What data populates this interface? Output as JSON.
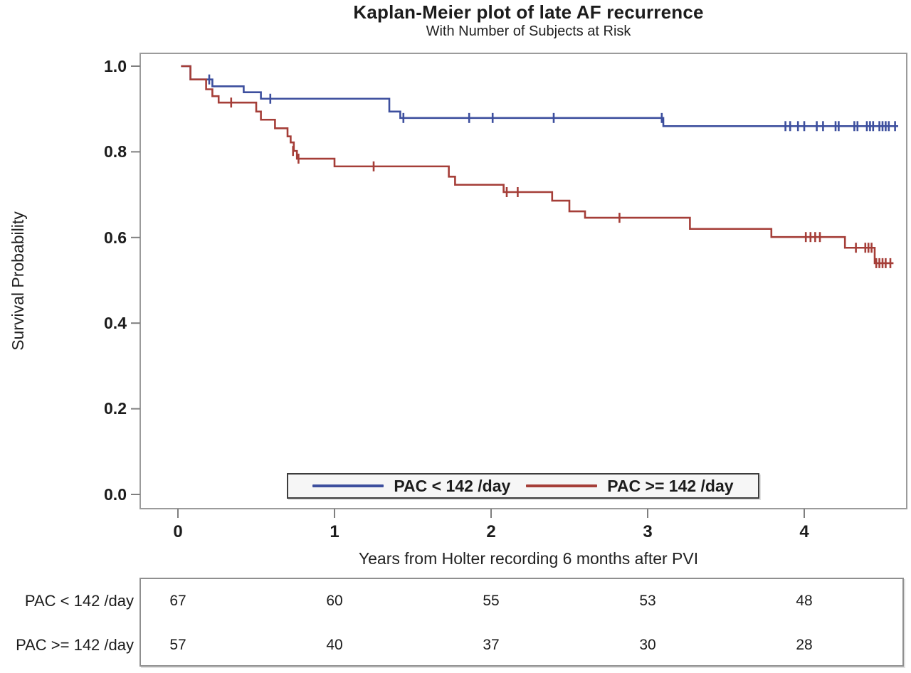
{
  "chart_data": {
    "type": "line",
    "subtype": "kaplan-meier-step",
    "title": "Kaplan-Meier plot of late AF recurrence",
    "subtitle": "With Number of Subjects at Risk",
    "xlabel": "Years from Holter recording 6 months after PVI",
    "ylabel": "Survival Probability",
    "xlim": [
      -0.24,
      4.66
    ],
    "ylim": [
      -0.033,
      1.03
    ],
    "grid": false,
    "legend_position": "inside-bottom-center",
    "x_ticks": [
      "0",
      "1",
      "2",
      "3",
      "4"
    ],
    "x_tick_values": [
      0,
      1,
      2,
      3,
      4
    ],
    "y_ticks": [
      "1.0",
      "0.8",
      "0.6",
      "0.4",
      "0.2",
      "0.0"
    ],
    "y_tick_values": [
      1.0,
      0.8,
      0.6,
      0.4,
      0.2,
      0.0
    ],
    "frame_color": "#9b9b9b",
    "tick_color": "#7f7f7f",
    "series": [
      {
        "name": "PAC < 142 /day",
        "color": "#3D4F9E",
        "steps": [
          [
            0.02,
            1.0
          ],
          [
            0.08,
            0.969
          ],
          [
            0.22,
            0.953
          ],
          [
            0.42,
            0.939
          ],
          [
            0.53,
            0.924
          ],
          [
            1.35,
            0.894
          ],
          [
            1.42,
            0.879
          ],
          [
            3.1,
            0.86
          ]
        ],
        "end_time": 4.6,
        "censors": [
          [
            0.2,
            0.969
          ],
          [
            0.59,
            0.924
          ],
          [
            1.44,
            0.879
          ],
          [
            1.86,
            0.879
          ],
          [
            2.01,
            0.879
          ],
          [
            2.4,
            0.879
          ],
          [
            3.09,
            0.879
          ],
          [
            3.88,
            0.86
          ],
          [
            3.91,
            0.86
          ],
          [
            3.96,
            0.86
          ],
          [
            4.0,
            0.86
          ],
          [
            4.08,
            0.86
          ],
          [
            4.12,
            0.86
          ],
          [
            4.2,
            0.86
          ],
          [
            4.22,
            0.86
          ],
          [
            4.32,
            0.86
          ],
          [
            4.34,
            0.86
          ],
          [
            4.4,
            0.86
          ],
          [
            4.42,
            0.86
          ],
          [
            4.44,
            0.86
          ],
          [
            4.48,
            0.86
          ],
          [
            4.5,
            0.86
          ],
          [
            4.52,
            0.86
          ],
          [
            4.54,
            0.86
          ],
          [
            4.58,
            0.86
          ]
        ]
      },
      {
        "name": "PAC >= 142 /day",
        "color": "#A53E38",
        "steps": [
          [
            0.02,
            1.0
          ],
          [
            0.08,
            0.969
          ],
          [
            0.18,
            0.946
          ],
          [
            0.22,
            0.93
          ],
          [
            0.26,
            0.915
          ],
          [
            0.5,
            0.894
          ],
          [
            0.53,
            0.875
          ],
          [
            0.62,
            0.855
          ],
          [
            0.7,
            0.836
          ],
          [
            0.72,
            0.822
          ],
          [
            0.74,
            0.802
          ],
          [
            0.76,
            0.784
          ],
          [
            1.0,
            0.766
          ],
          [
            1.73,
            0.742
          ],
          [
            1.77,
            0.723
          ],
          [
            2.08,
            0.706
          ],
          [
            2.39,
            0.686
          ],
          [
            2.5,
            0.661
          ],
          [
            2.6,
            0.646
          ],
          [
            3.27,
            0.62
          ],
          [
            3.79,
            0.601
          ],
          [
            4.26,
            0.576
          ],
          [
            4.45,
            0.54
          ]
        ],
        "end_time": 4.57,
        "censors": [
          [
            0.34,
            0.915
          ],
          [
            0.735,
            0.802
          ],
          [
            0.77,
            0.784
          ],
          [
            1.25,
            0.766
          ],
          [
            2.1,
            0.706
          ],
          [
            2.17,
            0.706
          ],
          [
            2.82,
            0.646
          ],
          [
            4.01,
            0.601
          ],
          [
            4.04,
            0.601
          ],
          [
            4.07,
            0.601
          ],
          [
            4.1,
            0.601
          ],
          [
            4.33,
            0.576
          ],
          [
            4.39,
            0.576
          ],
          [
            4.41,
            0.576
          ],
          [
            4.43,
            0.576
          ],
          [
            4.46,
            0.54
          ],
          [
            4.48,
            0.54
          ],
          [
            4.5,
            0.54
          ],
          [
            4.52,
            0.54
          ],
          [
            4.55,
            0.54
          ]
        ]
      }
    ]
  },
  "risk_table": {
    "time_points": [
      0,
      1,
      2,
      3,
      4
    ],
    "rows": [
      {
        "label": "PAC < 142 /day",
        "values": [
          "67",
          "60",
          "55",
          "53",
          "48"
        ]
      },
      {
        "label": "PAC >= 142 /day",
        "values": [
          "57",
          "40",
          "37",
          "30",
          "28"
        ]
      }
    ]
  }
}
